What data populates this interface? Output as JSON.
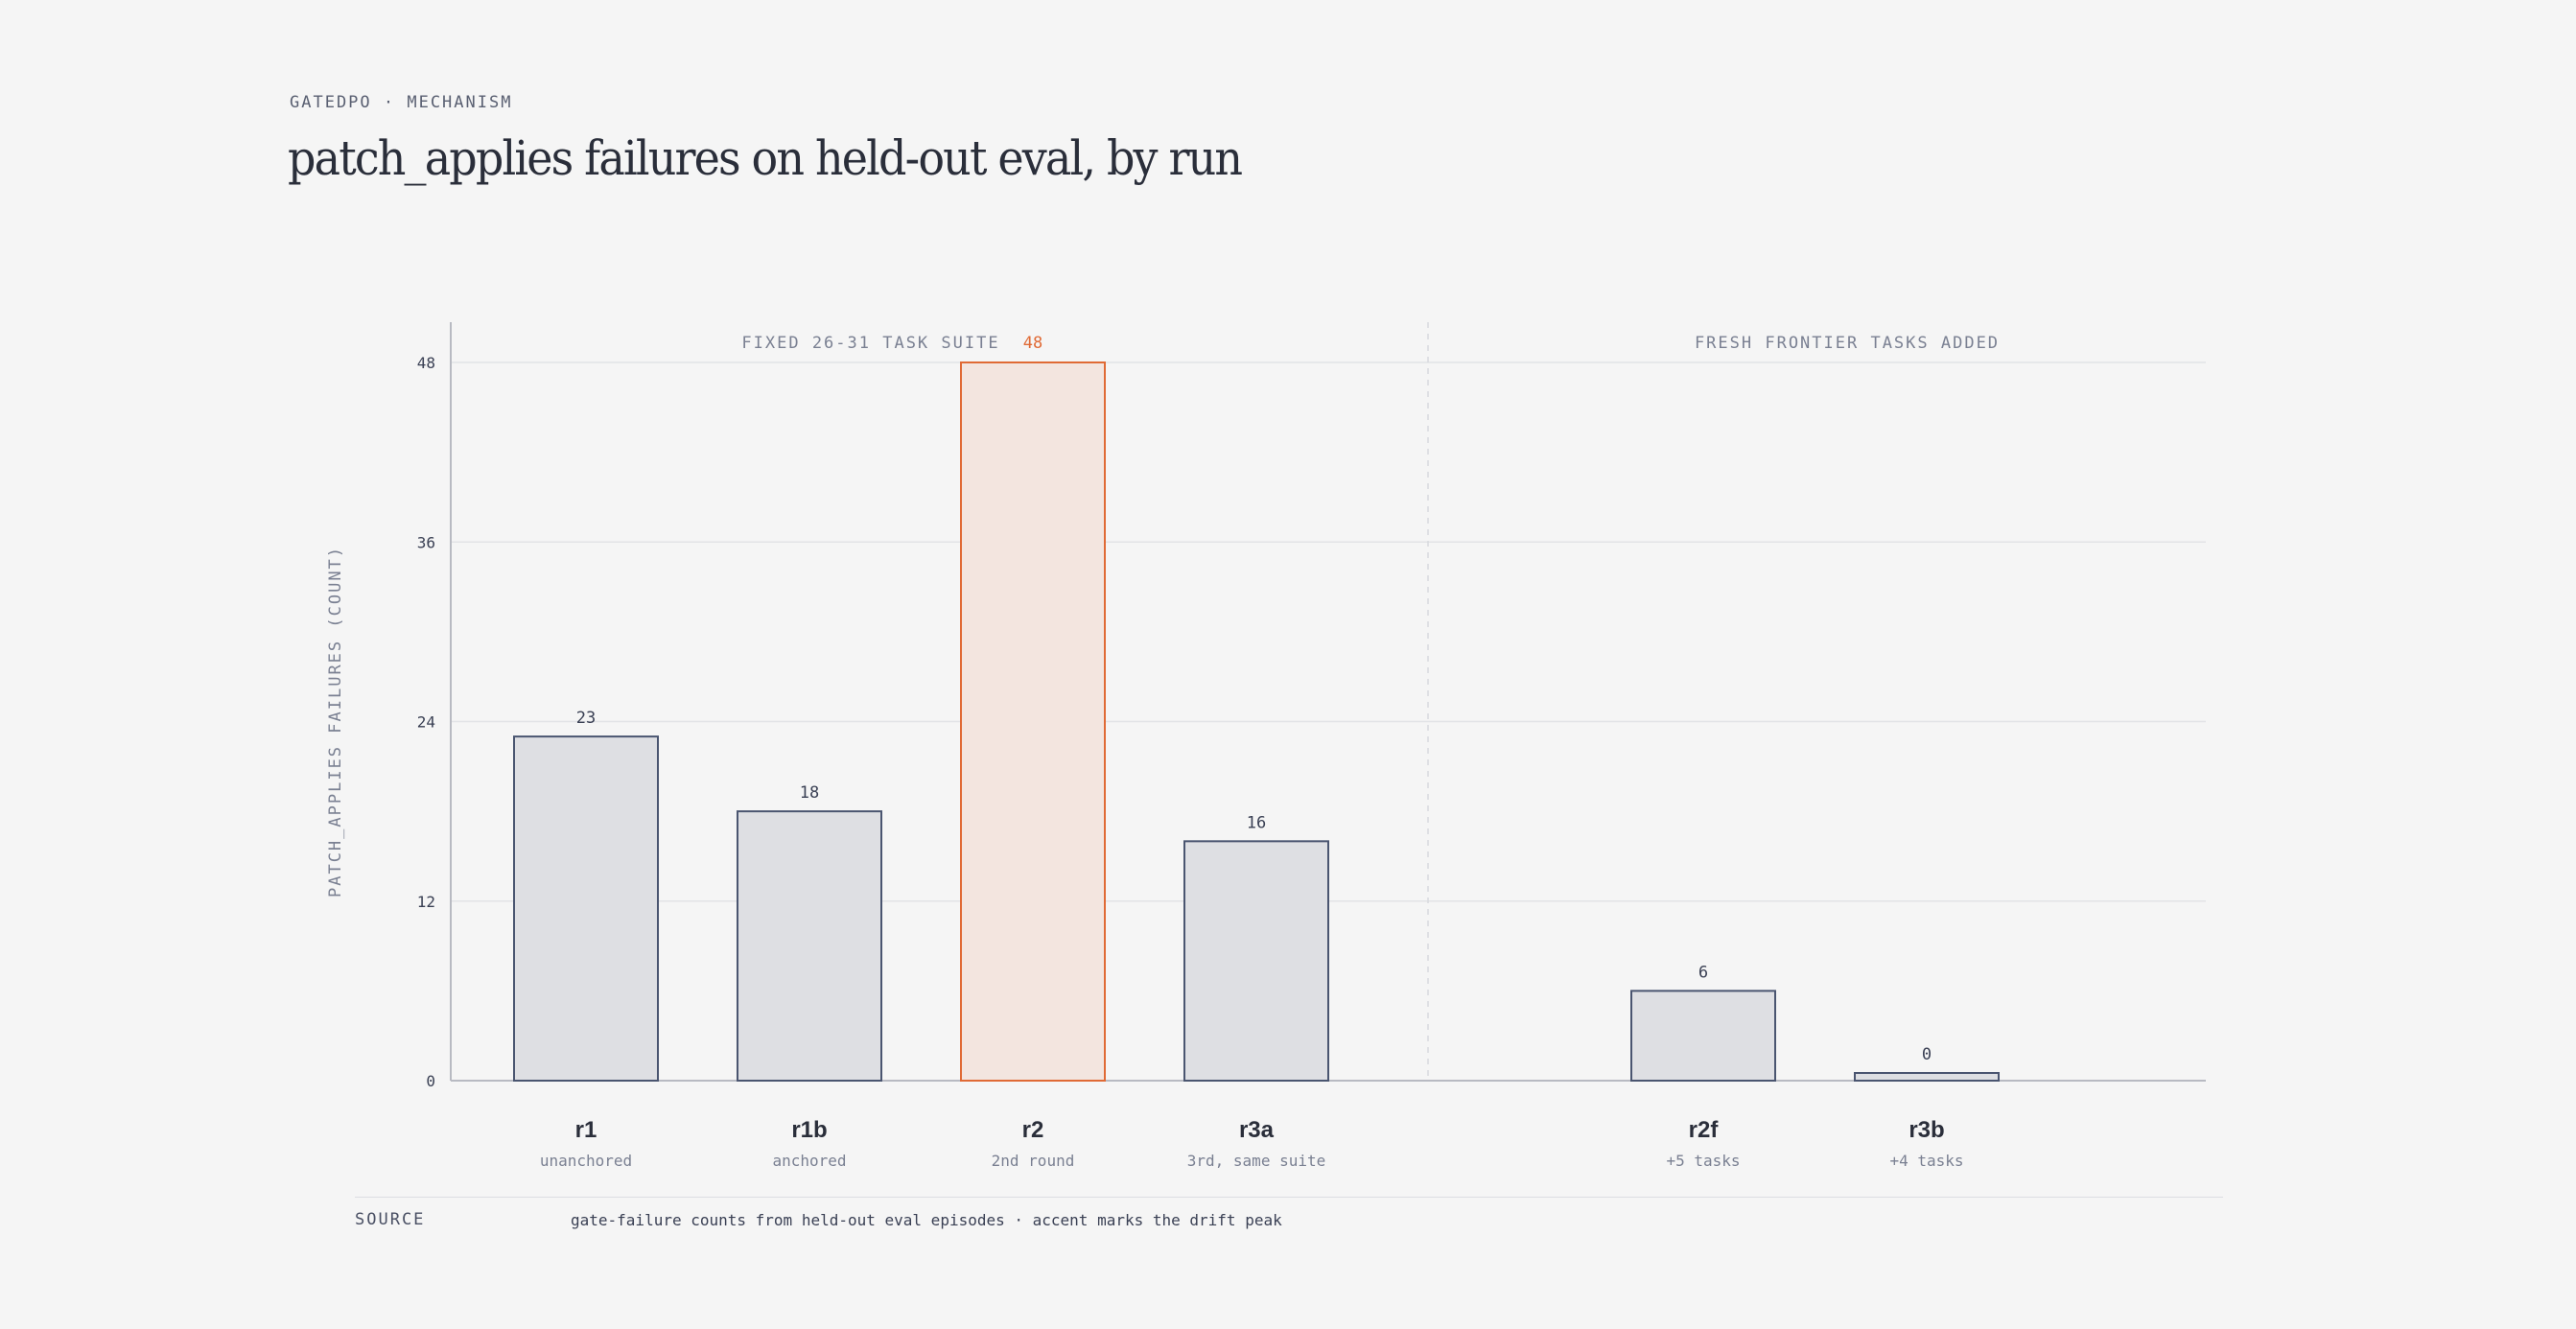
{
  "header": {
    "eyebrow": "GATEDPO · MECHANISM",
    "title": "patch_applies failures on held-out eval, by run"
  },
  "chart_data": {
    "type": "bar",
    "title": "patch_applies failures on held-out eval, by run",
    "ylabel": "PATCH_APPLIES FAILURES (COUNT)",
    "ylim": [
      0,
      48
    ],
    "yticks": [
      0,
      12,
      24,
      36,
      48
    ],
    "grid": true,
    "groups": [
      {
        "label": "FIXED 26-31 TASK SUITE",
        "bars": [
          {
            "name": "r1",
            "sublabel": "unanchored",
            "value": 23,
            "highlight": false
          },
          {
            "name": "r1b",
            "sublabel": "anchored",
            "value": 18,
            "highlight": false
          },
          {
            "name": "r2",
            "sublabel": "2nd round",
            "value": 48,
            "highlight": true
          },
          {
            "name": "r3a",
            "sublabel": "3rd, same suite",
            "value": 16,
            "highlight": false
          }
        ]
      },
      {
        "label": "FRESH FRONTIER TASKS ADDED",
        "bars": [
          {
            "name": "r2f",
            "sublabel": "+5 tasks",
            "value": 6,
            "highlight": false
          },
          {
            "name": "r3b",
            "sublabel": "+4 tasks",
            "value": 0,
            "highlight": false
          }
        ]
      }
    ],
    "colors": {
      "bar_fill": "#dedfe3",
      "bar_stroke": "#4a5570",
      "accent": "#e06a35",
      "accent_fill": "#f3e5df",
      "grid": "#e2e3e6",
      "axis": "#b8bac2",
      "text": "#3a4054",
      "muted": "#7a8092"
    }
  },
  "footer": {
    "source_label": "SOURCE",
    "source_text": "gate-failure counts from held-out eval episodes · accent marks the drift peak"
  }
}
